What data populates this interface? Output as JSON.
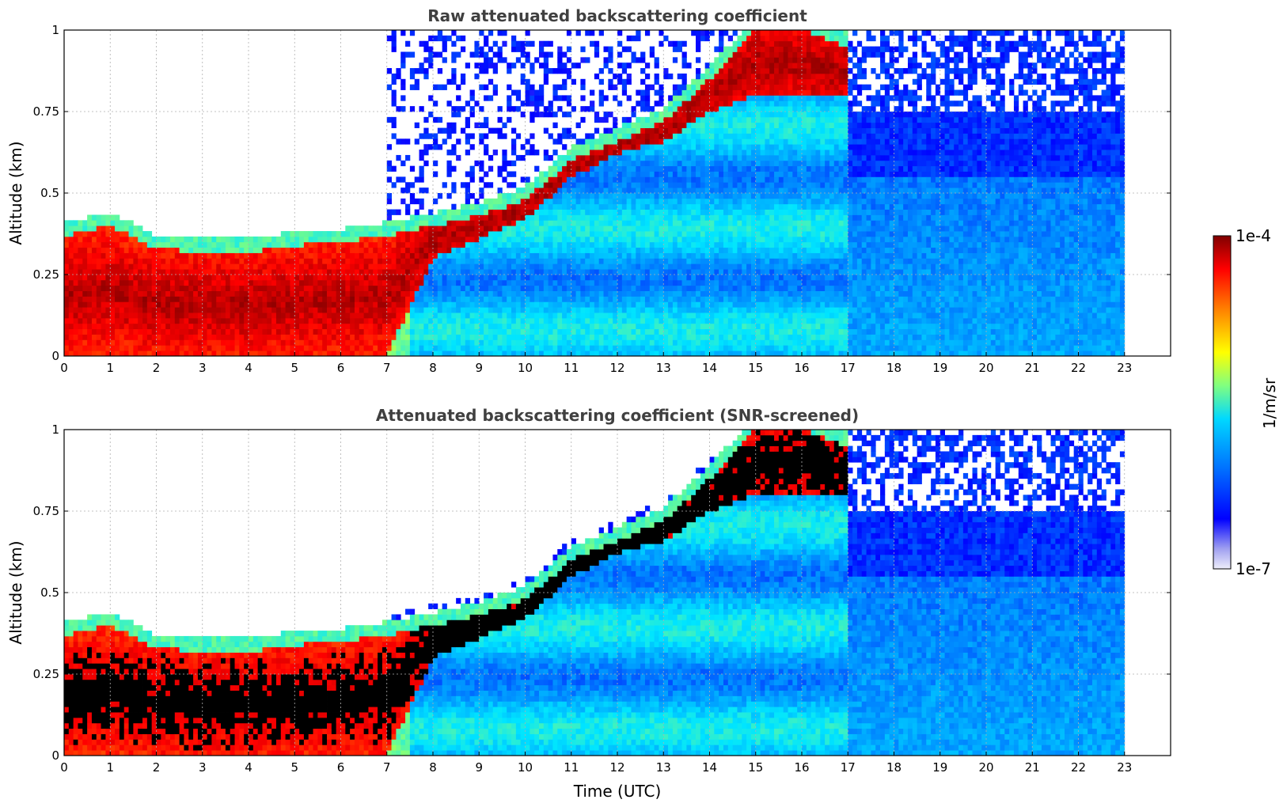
{
  "chart_data": [
    {
      "type": "heatmap",
      "title": "Raw attenuated backscattering coefficient",
      "xlabel": "",
      "ylabel": "Altitude (km)",
      "xlim": [
        0,
        24
      ],
      "ylim": [
        0,
        1
      ],
      "x_ticks": [
        "0",
        "1",
        "2",
        "3",
        "4",
        "5",
        "6",
        "7",
        "8",
        "9",
        "10",
        "11",
        "12",
        "13",
        "14",
        "15",
        "16",
        "17",
        "18",
        "19",
        "20",
        "21",
        "22",
        "23"
      ],
      "y_ticks": [
        "0",
        "0.25",
        "0.5",
        "0.75",
        "1"
      ],
      "grid": true,
      "data_end_time": 23,
      "layer_top_km": [
        0.37,
        0.4,
        0.33,
        0.32,
        0.32,
        0.34,
        0.35,
        0.37,
        0.4,
        0.43,
        0.48,
        0.6,
        0.66,
        0.72,
        0.85,
        1.0,
        1.0,
        0.95,
        null,
        null,
        null,
        null,
        null,
        null
      ],
      "layer_base_km": [
        0.0,
        0.0,
        0.0,
        0.0,
        0.0,
        0.0,
        0.0,
        0.0,
        0.3,
        0.36,
        0.42,
        0.55,
        0.62,
        0.66,
        0.75,
        0.8,
        0.8,
        0.8,
        null,
        null,
        null,
        null,
        null,
        null
      ]
    },
    {
      "type": "heatmap",
      "title": "Attenuated backscattering coefficient (SNR-screened)",
      "xlabel": "Time (UTC)",
      "ylabel": "Altitude (km)",
      "xlim": [
        0,
        24
      ],
      "ylim": [
        0,
        1
      ],
      "x_ticks": [
        "0",
        "1",
        "2",
        "3",
        "4",
        "5",
        "6",
        "7",
        "8",
        "9",
        "10",
        "11",
        "12",
        "13",
        "14",
        "15",
        "16",
        "17",
        "18",
        "19",
        "20",
        "21",
        "22",
        "23"
      ],
      "y_ticks": [
        "0",
        "0.25",
        "0.5",
        "0.75",
        "1"
      ],
      "grid": true,
      "data_end_time": 23
    }
  ],
  "colorbar": {
    "label": "1/m/sr",
    "max_label": "1e-4",
    "min_label": "1e-7",
    "scale": "log",
    "colormap": [
      "#e8e8f8",
      "#0000ff",
      "#0080ff",
      "#00e5ff",
      "#7fff7f",
      "#ffff00",
      "#ff8000",
      "#ff0000",
      "#800000"
    ]
  }
}
